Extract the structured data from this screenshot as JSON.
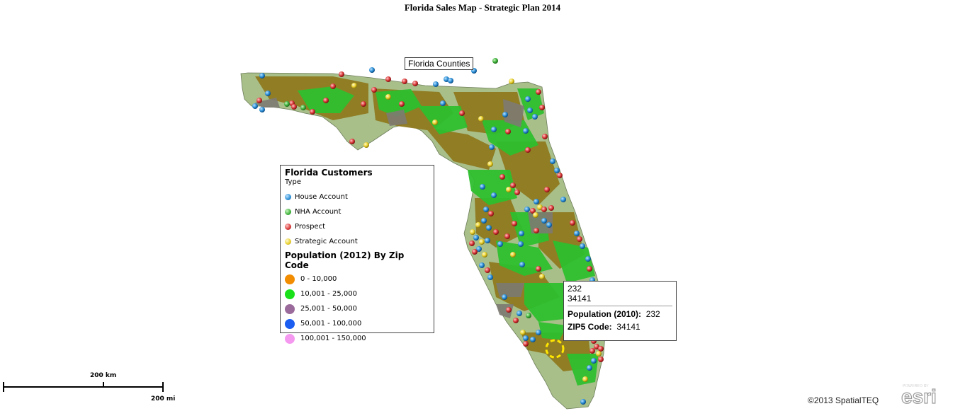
{
  "title": "Florida Sales Map - Strategic Plan 2014",
  "layer_label": "Florida Counties",
  "legend": {
    "title": "Florida Customers",
    "subtitle": "Type",
    "types": [
      {
        "label": "House Account",
        "color": "#2b8fd6"
      },
      {
        "label": "NHA Account",
        "color": "#3fb13b"
      },
      {
        "label": "Prospect",
        "color": "#d93636"
      },
      {
        "label": "Strategic Account",
        "color": "#e8cf2a"
      }
    ],
    "population_title": "Population (2012) By Zip Code",
    "population": [
      {
        "label": "0 - 10,000",
        "color": "#f28c00"
      },
      {
        "label": "10,001 - 25,000",
        "color": "#19e019"
      },
      {
        "label": "25,001 - 50,000",
        "color": "#9a6b9a"
      },
      {
        "label": "50,001 - 100,000",
        "color": "#1a5df0"
      },
      {
        "label": "100,001 - 150,000",
        "color": "#f598f0"
      }
    ]
  },
  "popup": {
    "line1": "232",
    "line2": "34141",
    "pop_label": "Population (2010):",
    "pop_value": "232",
    "zip_label": "ZIP5 Code:",
    "zip_value": "34141"
  },
  "scale": {
    "km": "200 km",
    "mi": "200 mi"
  },
  "copyright": "©2013 SpatialTEQ",
  "esri": {
    "powered": "POWERED BY",
    "name": "esri"
  },
  "map_colors": {
    "land": "#a8bf8a",
    "green": "#2fbf2f",
    "brown": "#8f7a1f",
    "gray": "#7d7a72"
  }
}
